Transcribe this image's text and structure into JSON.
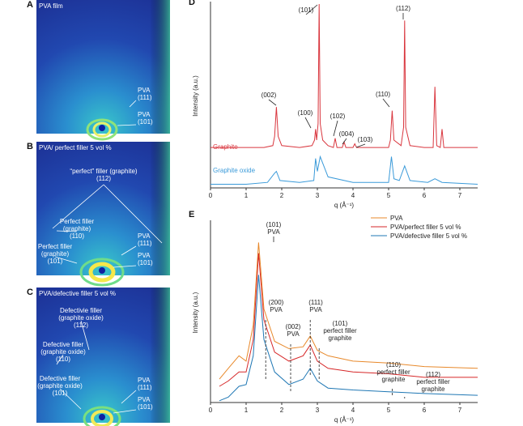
{
  "panels": [
    {
      "letter": "A",
      "title": "PVA film",
      "labels": [
        [
          "PVA",
          "(111)"
        ],
        [
          "PVA",
          "(101)"
        ]
      ]
    },
    {
      "letter": "B",
      "title": "PVA/ perfect filler 5 vol %",
      "labels": [
        [
          "“perfect” filler (graphite)",
          "(112)"
        ],
        [
          "Perfect filler",
          "(graphite)",
          "(110)"
        ],
        [
          "Perfect filler",
          "(graphite)",
          "(101)"
        ],
        [
          "PVA",
          "(111)"
        ],
        [
          "PVA",
          "(101)"
        ]
      ]
    },
    {
      "letter": "C",
      "title": "PVA/defective filler 5 vol %",
      "labels": [
        [
          "Defectivie filler",
          "(graphite oxide)",
          "(112)"
        ],
        [
          "Defective filler",
          "(graphite oxide)",
          "(110)"
        ],
        [
          "Defective filler",
          "(graphite oxide)",
          "(101)"
        ],
        [
          "PVA",
          "(111)"
        ],
        [
          "PVA",
          "(101)"
        ]
      ]
    }
  ],
  "chart_data": [
    {
      "type": "line",
      "letter": "D",
      "ylabel": "Intensity (a.u.)",
      "xlabel": "q (Å⁻¹)",
      "xlim": [
        0,
        7.5
      ],
      "xticks": [
        0,
        1,
        2,
        3,
        4,
        5,
        6,
        7
      ],
      "ylim": [
        0,
        100
      ],
      "annotations": [
        "(101)",
        "(112)",
        "(002)",
        "(100)",
        "(102)",
        "(004)",
        "(103)",
        "(110)"
      ],
      "series": [
        {
          "name": "Graphite",
          "color": "#d9363e",
          "x": [
            0,
            0.5,
            1.0,
            1.5,
            1.75,
            1.8,
            1.85,
            1.9,
            2.0,
            2.5,
            2.85,
            2.92,
            2.95,
            2.98,
            3.02,
            3.05,
            3.08,
            3.15,
            3.3,
            3.45,
            3.5,
            3.55,
            3.7,
            3.75,
            3.8,
            4.0,
            4.05,
            4.1,
            4.5,
            5.0,
            5.05,
            5.1,
            5.15,
            5.35,
            5.42,
            5.45,
            5.48,
            5.6,
            6.0,
            6.25,
            6.3,
            6.35,
            6.45,
            6.5,
            6.55,
            7.0,
            7.5
          ],
          "values": [
            22,
            22,
            22,
            22,
            23,
            28,
            44,
            28,
            23,
            22,
            23,
            26,
            32,
            26,
            35,
            100,
            35,
            26,
            23,
            22,
            27,
            22,
            22,
            25,
            22,
            22,
            24,
            22,
            22,
            22,
            26,
            42,
            26,
            23,
            33,
            91,
            33,
            23,
            22,
            22,
            55,
            23,
            22,
            32,
            22,
            22,
            22
          ]
        },
        {
          "name": "Graphite oxide",
          "color": "#3a9ad9",
          "x": [
            0,
            1.0,
            1.6,
            1.8,
            1.85,
            1.95,
            2.5,
            2.9,
            2.95,
            3.0,
            3.08,
            3.3,
            4.0,
            5.0,
            5.08,
            5.15,
            5.3,
            5.45,
            5.6,
            6.1,
            6.3,
            6.5,
            7.5
          ],
          "values": [
            2,
            2,
            3,
            8,
            9,
            4,
            3,
            4,
            16,
            9,
            17,
            6,
            3,
            3,
            17,
            5,
            4,
            12,
            4,
            3,
            5,
            3,
            2
          ]
        }
      ]
    },
    {
      "type": "line",
      "letter": "E",
      "ylabel": "Intensity (a.u.)",
      "xlabel": "q (Å⁻¹)",
      "xlim": [
        0,
        7.5
      ],
      "xticks": [
        0,
        1,
        2,
        3,
        4,
        5,
        6,
        7
      ],
      "ylim": [
        0,
        100
      ],
      "annotations": [
        [
          "(101)",
          "PVA"
        ],
        [
          "(200)",
          "PVA"
        ],
        [
          "(002)",
          "PVA"
        ],
        [
          "(111)",
          "PVA"
        ],
        [
          "(101)",
          "perfect filler",
          "graphite"
        ],
        [
          "(110)",
          "perfect filler",
          "graphite"
        ],
        [
          "(112)",
          "perfect filler",
          "graphite"
        ]
      ],
      "series": [
        {
          "name": "PVA",
          "color": "#e8892b",
          "x": [
            0.25,
            0.5,
            0.8,
            1.0,
            1.2,
            1.35,
            1.5,
            1.8,
            2.2,
            2.6,
            2.8,
            3.0,
            3.3,
            4,
            5,
            6,
            7.5
          ],
          "values": [
            13,
            19,
            26,
            23,
            43,
            89,
            52,
            34,
            30,
            31,
            37,
            29,
            26,
            23,
            22,
            20,
            19
          ]
        },
        {
          "name": "PVA/perfect filler 5 vol %",
          "color": "#d62728",
          "x": [
            0.25,
            0.5,
            0.8,
            1.0,
            1.2,
            1.35,
            1.5,
            1.8,
            2.2,
            2.6,
            2.8,
            3.0,
            3.3,
            4,
            5,
            6,
            7.5
          ],
          "values": [
            9,
            12,
            17,
            17,
            35,
            83,
            46,
            28,
            23,
            26,
            32,
            23,
            19,
            17,
            16,
            14,
            14
          ]
        },
        {
          "name": "PVA/defective filler 5 vol %",
          "color": "#1f77b4",
          "x": [
            0.25,
            0.5,
            0.8,
            1.0,
            1.2,
            1.35,
            1.5,
            1.8,
            2.2,
            2.6,
            2.8,
            3.0,
            3.3,
            4,
            5,
            6,
            7.5
          ],
          "values": [
            1,
            3,
            9,
            10,
            26,
            71,
            35,
            17,
            10,
            13,
            19,
            12,
            8,
            7,
            6,
            5,
            4
          ]
        }
      ]
    }
  ]
}
